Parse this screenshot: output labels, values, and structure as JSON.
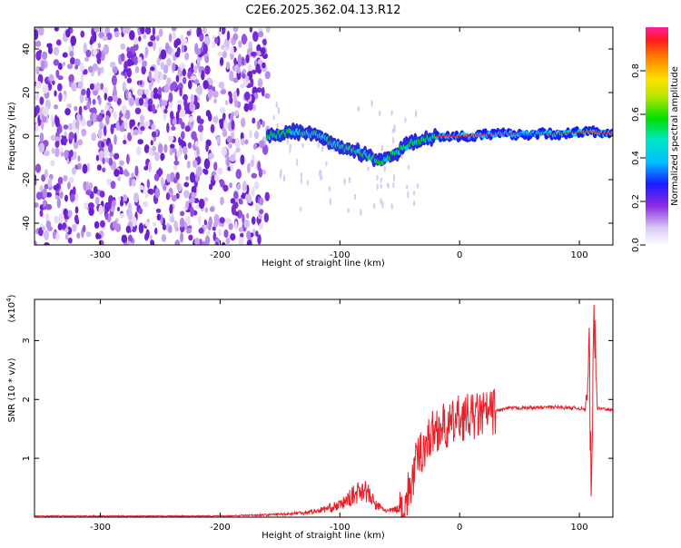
{
  "title": "C2E6.2025.362.04.13.R12",
  "colors": {
    "snr_line": "#e8202a",
    "background": "#ffffff",
    "axis": "#000000"
  },
  "chart_data": [
    {
      "type": "heatmap",
      "title": "C2E6.2025.362.04.13.R12",
      "xlabel": "Height of straight line (km)",
      "ylabel": "Frequency (Hz)",
      "xlim": [
        -355,
        128
      ],
      "ylim": [
        -50,
        50
      ],
      "xticks": [
        -300,
        -200,
        -100,
        0,
        100
      ],
      "yticks": [
        -40,
        -20,
        0,
        20,
        40
      ],
      "grid": false,
      "colorbar": {
        "label": "Normalized spectral amplitude",
        "range": [
          0,
          1
        ],
        "ticks": [
          "0.0",
          "0.2",
          "0.4",
          "0.6",
          "0.8"
        ],
        "colormap": "rainbow (white-purple-blue-cyan-green-yellow-red-magenta)",
        "placement": "right"
      },
      "features": {
        "noise_region_x": [
          -355,
          -160
        ],
        "signal_band_center": [
          {
            "x": -160,
            "y": 0
          },
          {
            "x": -140,
            "y": 2
          },
          {
            "x": -120,
            "y": 1
          },
          {
            "x": -100,
            "y": -5
          },
          {
            "x": -80,
            "y": -8
          },
          {
            "x": -65,
            "y": -12
          },
          {
            "x": -55,
            "y": -8
          },
          {
            "x": -40,
            "y": -3
          },
          {
            "x": -20,
            "y": 0
          },
          {
            "x": 0,
            "y": 0
          },
          {
            "x": 40,
            "y": 1
          },
          {
            "x": 80,
            "y": 1
          },
          {
            "x": 110,
            "y": 2
          },
          {
            "x": 128,
            "y": 1
          }
        ]
      }
    },
    {
      "type": "line",
      "xlabel": "Height of straight line (km)",
      "ylabel": "SNR (10 * v/v)",
      "y_multiplier": "(x10",
      "y_multiplier_exp": "4",
      "xlim": [
        -355,
        128
      ],
      "ylim": [
        0,
        3.7
      ],
      "xticks": [
        -300,
        -200,
        -100,
        0,
        100
      ],
      "yticks": [
        1,
        2,
        3
      ],
      "grid": false,
      "series": [
        {
          "values_x": [
            -355,
            -300,
            -250,
            -200,
            -180,
            -160,
            -140,
            -120,
            -110,
            -100,
            -90,
            -80,
            -70,
            -60,
            -50,
            -45,
            -40,
            -35,
            -30,
            -25,
            -20,
            -15,
            -10,
            -5,
            0,
            10,
            20,
            30,
            40,
            60,
            80,
            100,
            105,
            108,
            110,
            112,
            115,
            128
          ],
          "values_y": [
            0.02,
            0.02,
            0.02,
            0.02,
            0.03,
            0.04,
            0.06,
            0.1,
            0.15,
            0.2,
            0.35,
            0.5,
            0.2,
            0.1,
            0.15,
            0.25,
            0.6,
            1.0,
            1.2,
            1.35,
            1.5,
            1.55,
            1.5,
            1.6,
            1.7,
            1.7,
            1.75,
            1.8,
            1.85,
            1.86,
            1.87,
            1.85,
            1.82,
            2.9,
            0.25,
            3.7,
            1.85,
            1.82
          ]
        }
      ]
    }
  ]
}
